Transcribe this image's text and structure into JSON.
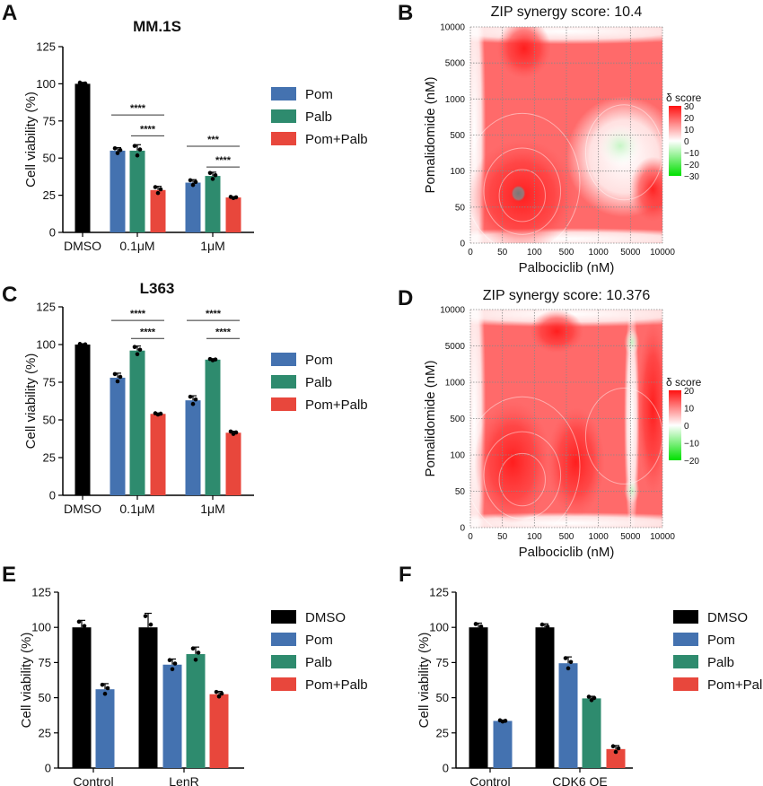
{
  "colors": {
    "DMSO": "#000000",
    "Pom": "#4472b0",
    "Palb": "#2e8b6e",
    "Pom+Palb": "#e8473c",
    "synergy_high": "#ff1a1a",
    "synergy_low": "#00e000"
  },
  "chart_data": [
    {
      "panel": "A",
      "type": "bar",
      "title": "MM.1S",
      "ylabel": "Cell viability  (%)",
      "ylim": [
        0,
        125
      ],
      "yticks": [
        0,
        25,
        50,
        75,
        100,
        125
      ],
      "categories": [
        "DMSO",
        "0.1μM",
        "1μM"
      ],
      "legend": [
        "Pom",
        "Palb",
        "Pom+Palb"
      ],
      "legend_position": "right",
      "bars": [
        {
          "group": "DMSO",
          "series": "DMSO",
          "value": 100,
          "err": 1
        },
        {
          "group": "0.1μM",
          "series": "Pom",
          "value": 55,
          "err": 2
        },
        {
          "group": "0.1μM",
          "series": "Palb",
          "value": 55,
          "err": 4
        },
        {
          "group": "0.1μM",
          "series": "Pom+Palb",
          "value": 28.5,
          "err": 2.5
        },
        {
          "group": "1μM",
          "series": "Pom",
          "value": 33.5,
          "err": 2
        },
        {
          "group": "1μM",
          "series": "Palb",
          "value": 38,
          "err": 2.5
        },
        {
          "group": "1μM",
          "series": "Pom+Palb",
          "value": 23.5,
          "err": 0.5
        }
      ],
      "significance": [
        {
          "group": "0.1μM",
          "from": "Pom",
          "to": "Pom+Palb",
          "label": "****",
          "y": 79
        },
        {
          "group": "0.1μM",
          "from": "Palb",
          "to": "Pom+Palb",
          "label": "****",
          "y": 65
        },
        {
          "group": "1μM",
          "from": "Pom",
          "to": "Pom+Palb",
          "label": "***",
          "y": 58
        },
        {
          "group": "1μM",
          "from": "Palb",
          "to": "Pom+Palb",
          "label": "****",
          "y": 44
        }
      ]
    },
    {
      "panel": "B",
      "type": "heatmap",
      "title": "ZIP synergy score: 10.4",
      "xlabel": "Palbociclib (nM)",
      "ylabel": "Pomalidomide (nM)",
      "xticks": [
        "0",
        "50",
        "100",
        "500",
        "1000",
        "5000",
        "10000"
      ],
      "yticks": [
        "0",
        "50",
        "100",
        "500",
        "1000",
        "5000",
        "10000"
      ],
      "colorbar": {
        "title": "δ  score",
        "ticks": [
          "30",
          "20",
          "10",
          "0",
          "−10",
          "−20",
          "−30"
        ],
        "range": [
          -30,
          30
        ]
      }
    },
    {
      "panel": "C",
      "type": "bar",
      "title": "L363",
      "ylabel": "Cell viability  (%)",
      "ylim": [
        0,
        125
      ],
      "yticks": [
        0,
        25,
        50,
        75,
        100,
        125
      ],
      "categories": [
        "DMSO",
        "0.1μM",
        "1μM"
      ],
      "legend": [
        "Pom",
        "Palb",
        "Pom+Palb"
      ],
      "legend_position": "right",
      "bars": [
        {
          "group": "DMSO",
          "series": "DMSO",
          "value": 100,
          "err": 0.5
        },
        {
          "group": "0.1μM",
          "series": "Pom",
          "value": 78,
          "err": 3
        },
        {
          "group": "0.1μM",
          "series": "Palb",
          "value": 96,
          "err": 3
        },
        {
          "group": "0.1μM",
          "series": "Pom+Palb",
          "value": 54,
          "err": 0.5
        },
        {
          "group": "1μM",
          "series": "Pom",
          "value": 63,
          "err": 3
        },
        {
          "group": "1μM",
          "series": "Palb",
          "value": 90,
          "err": 0.5
        },
        {
          "group": "1μM",
          "series": "Pom+Palb",
          "value": 41.5,
          "err": 1
        }
      ],
      "significance": [
        {
          "group": "0.1μM",
          "from": "Pom",
          "to": "Pom+Palb",
          "label": "****",
          "y": 116
        },
        {
          "group": "0.1μM",
          "from": "Palb",
          "to": "Pom+Palb",
          "label": "****",
          "y": 104
        },
        {
          "group": "1μM",
          "from": "Pom",
          "to": "Pom+Palb",
          "label": "****",
          "y": 116
        },
        {
          "group": "1μM",
          "from": "Palb",
          "to": "Pom+Palb",
          "label": "****",
          "y": 104
        }
      ]
    },
    {
      "panel": "D",
      "type": "heatmap",
      "title": "ZIP synergy score: 10.376",
      "xlabel": "Palbociclib (nM)",
      "ylabel": "Pomalidomide (nM)",
      "xticks": [
        "0",
        "50",
        "100",
        "500",
        "1000",
        "5000",
        "10000"
      ],
      "yticks": [
        "0",
        "50",
        "100",
        "500",
        "1000",
        "5000",
        "10000"
      ],
      "colorbar": {
        "title": "δ  score",
        "ticks": [
          "20",
          "10",
          "0",
          "−10",
          "−20"
        ],
        "range": [
          -20,
          20
        ]
      }
    },
    {
      "panel": "E",
      "type": "bar",
      "title": "",
      "ylabel": "Cell viability  (%)",
      "ylim": [
        0,
        125
      ],
      "yticks": [
        0,
        25,
        50,
        75,
        100,
        125
      ],
      "categories": [
        "Control",
        "LenR"
      ],
      "legend": [
        "DMSO",
        "Pom",
        "Palb",
        "Pom+Palb"
      ],
      "legend_position": "right",
      "bars": [
        {
          "group": "Control",
          "series": "DMSO",
          "value": 100,
          "err": 5
        },
        {
          "group": "Control",
          "series": "Pom",
          "value": 56,
          "err": 4
        },
        {
          "group": "LenR",
          "series": "DMSO",
          "value": 100,
          "err": 10
        },
        {
          "group": "LenR",
          "series": "Pom",
          "value": 73.5,
          "err": 4
        },
        {
          "group": "LenR",
          "series": "Palb",
          "value": 81,
          "err": 5
        },
        {
          "group": "LenR",
          "series": "Pom+Palb",
          "value": 52.5,
          "err": 2
        }
      ],
      "significance": []
    },
    {
      "panel": "F",
      "type": "bar",
      "title": "",
      "ylabel": "Cell viability  (%)",
      "ylim": [
        0,
        125
      ],
      "yticks": [
        0,
        25,
        50,
        75,
        100,
        125
      ],
      "categories": [
        "Control",
        "CDK6 OE"
      ],
      "legend": [
        "DMSO",
        "Pom",
        "Palb",
        "Pom+Palb"
      ],
      "legend_position": "right",
      "bars": [
        {
          "group": "Control",
          "series": "DMSO",
          "value": 100,
          "err": 3
        },
        {
          "group": "Control",
          "series": "Pom",
          "value": 33.5,
          "err": 0.5
        },
        {
          "group": "CDK6 OE",
          "series": "DMSO",
          "value": 100,
          "err": 2.5
        },
        {
          "group": "CDK6 OE",
          "series": "Pom",
          "value": 74.5,
          "err": 4.5
        },
        {
          "group": "CDK6 OE",
          "series": "Palb",
          "value": 49.5,
          "err": 1.5
        },
        {
          "group": "CDK6 OE",
          "series": "Pom+Palb",
          "value": 13.5,
          "err": 2.5
        }
      ],
      "significance": []
    }
  ]
}
